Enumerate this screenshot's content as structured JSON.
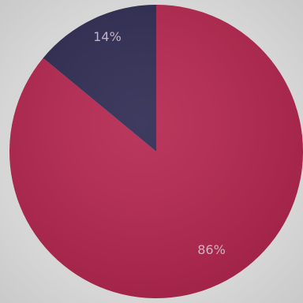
{
  "chart_data": {
    "type": "pie",
    "slices": [
      {
        "label": "86%",
        "value": 86,
        "color": "#b5264f"
      },
      {
        "label": "14%",
        "value": 14,
        "color": "#2e2a52"
      }
    ]
  }
}
